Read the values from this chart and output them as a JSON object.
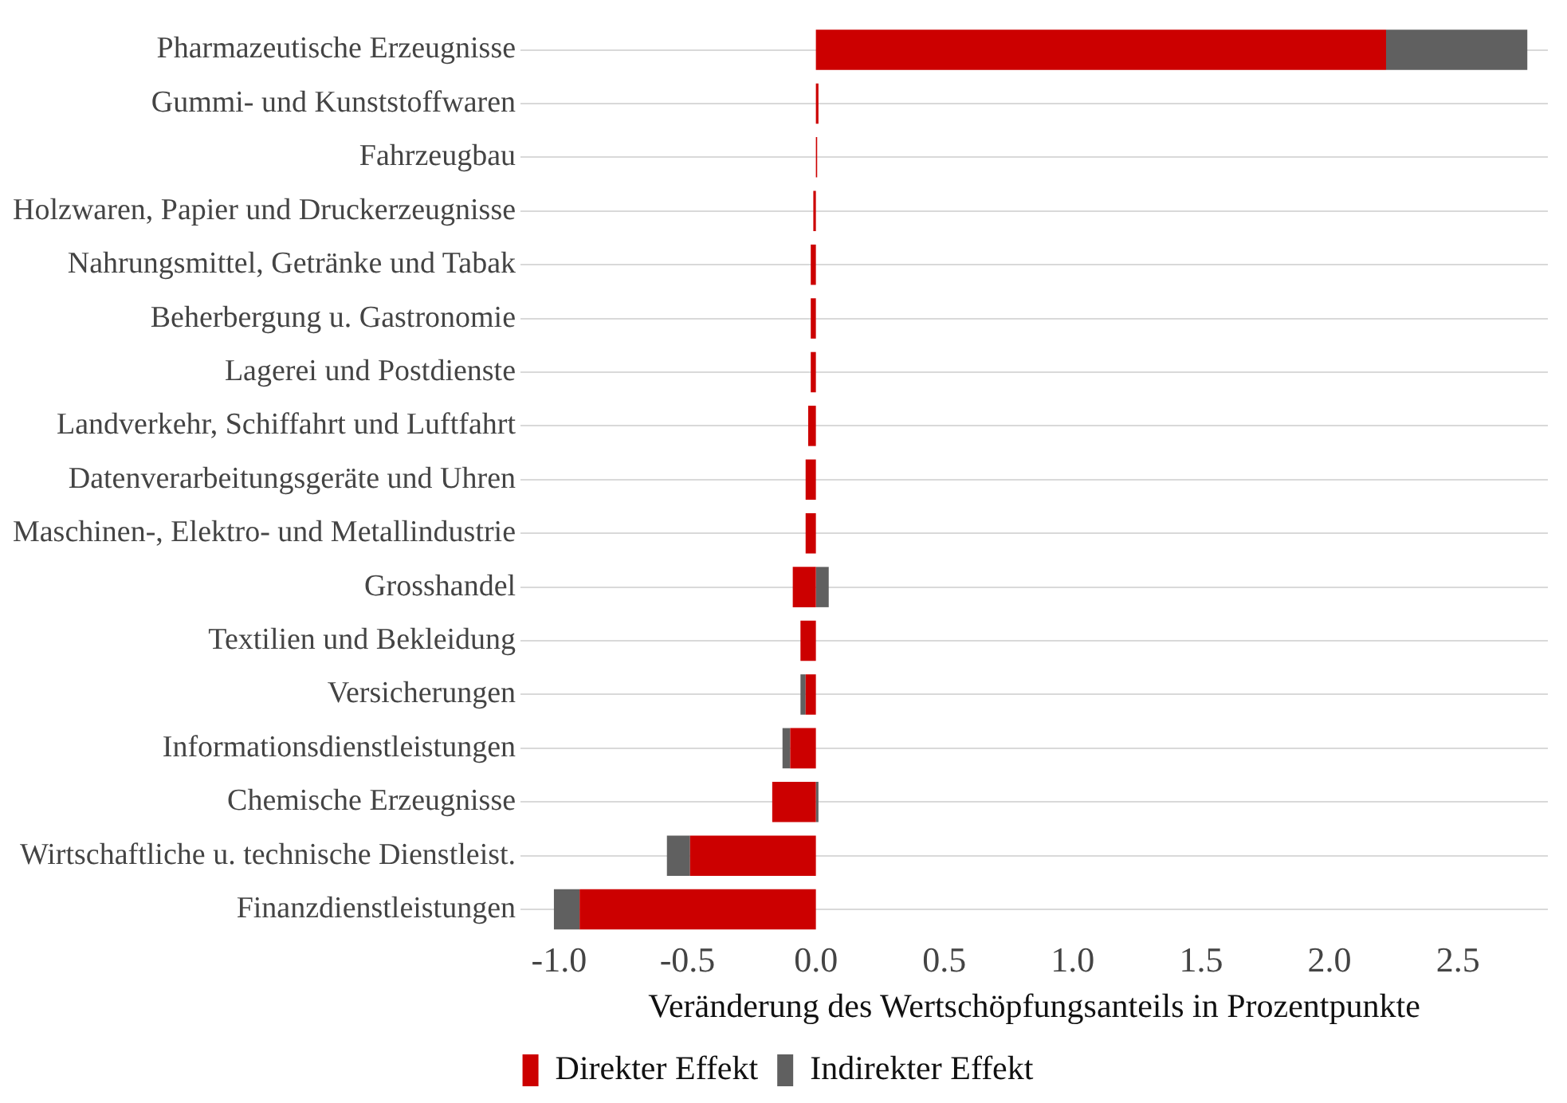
{
  "chart_data": {
    "type": "bar",
    "orientation": "horizontal",
    "stacked": true,
    "xlabel": "Veränderung des Wertschöpfungsanteils in Prozentpunkte",
    "categories": [
      "Pharmazeutische Erzeugnisse",
      "Gummi- und Kunststoffwaren",
      "Fahrzeugbau",
      "Holzwaren, Papier und Druckerzeugnisse",
      "Nahrungsmittel, Getränke und Tabak",
      "Beherbergung u. Gastronomie",
      "Lagerei und Postdienste",
      "Landverkehr, Schiffahrt und Luftfahrt",
      "Datenverarbeitungsgeräte und Uhren",
      "Maschinen-, Elektro- und Metallindustrie",
      "Grosshandel",
      "Textilien und Bekleidung",
      "Versicherungen",
      "Informationsdienstleistungen",
      "Chemische Erzeugnisse",
      "Wirtschaftliche u. technische Dienstleist.",
      "Finanzdienstleistungen"
    ],
    "series": [
      {
        "name": "Direkter Effekt",
        "color": "#cc0000",
        "values": [
          2.22,
          0.01,
          0.005,
          -0.01,
          -0.02,
          -0.02,
          -0.02,
          -0.03,
          -0.04,
          -0.04,
          -0.09,
          -0.06,
          -0.04,
          -0.1,
          -0.17,
          -0.49,
          -0.92
        ]
      },
      {
        "name": "Indirekter Effekt",
        "color": "#606060",
        "values": [
          0.55,
          0,
          0,
          0,
          0,
          0,
          0,
          0,
          0,
          0,
          0.05,
          0,
          -0.02,
          -0.03,
          0.01,
          -0.09,
          -0.1
        ]
      }
    ],
    "xlim": [
      -1.15,
      2.85
    ],
    "xticks": [
      {
        "value": -1,
        "label": "-1.0"
      },
      -0.5,
      {
        "value": 0,
        "label": "0.0"
      },
      0.5,
      {
        "value": 1,
        "label": "1.0"
      },
      1.5,
      {
        "value": 2,
        "label": "2.0"
      },
      2.5
    ],
    "grid": "y",
    "legend": "bottom"
  }
}
